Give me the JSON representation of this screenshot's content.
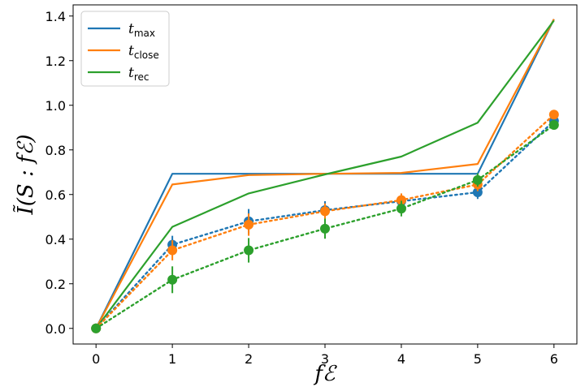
{
  "chart_data": {
    "type": "line",
    "x": [
      0,
      1,
      2,
      3,
      4,
      5,
      6
    ],
    "xlabel": "fℰ",
    "ylabel": "Ĩ(S : fℰ)",
    "xlim": [
      -0.3,
      6.3
    ],
    "ylim": [
      -0.07,
      1.45
    ],
    "xticks": [
      "0",
      "1",
      "2",
      "3",
      "4",
      "5",
      "6"
    ],
    "yticks": [
      "0.0",
      "0.2",
      "0.4",
      "0.6",
      "0.8",
      "1.0",
      "1.2",
      "1.4"
    ],
    "grid": false,
    "legend_position": "top-left",
    "series": [
      {
        "name": "t_max",
        "label_main": "t",
        "label_sub": "max",
        "color": "#1f77b4",
        "style": "solid",
        "values": [
          0.0,
          0.693,
          0.693,
          0.693,
          0.693,
          0.693,
          1.386
        ]
      },
      {
        "name": "t_close",
        "label_main": "t",
        "label_sub": "close",
        "color": "#ff7f0e",
        "style": "solid",
        "values": [
          0.0,
          0.645,
          0.687,
          0.693,
          0.697,
          0.737,
          1.386
        ]
      },
      {
        "name": "t_rec",
        "label_main": "t",
        "label_sub": "rec",
        "color": "#2ca02c",
        "style": "solid",
        "values": [
          0.0,
          0.455,
          0.605,
          0.69,
          0.77,
          0.922,
          1.38
        ]
      },
      {
        "color": "#1f77b4",
        "style": "dotted-markers",
        "values": [
          0.0,
          0.375,
          0.48,
          0.53,
          0.57,
          0.61,
          0.93
        ],
        "errors": [
          0.0,
          0.04,
          0.055,
          0.04,
          0.03,
          0.03,
          0.02
        ]
      },
      {
        "color": "#ff7f0e",
        "style": "dotted-markers",
        "values": [
          0.0,
          0.35,
          0.465,
          0.525,
          0.575,
          0.645,
          0.958
        ],
        "errors": [
          0.0,
          0.045,
          0.05,
          0.035,
          0.03,
          0.03,
          0.02
        ]
      },
      {
        "color": "#2ca02c",
        "style": "dotted-markers",
        "values": [
          0.0,
          0.218,
          0.35,
          0.447,
          0.537,
          0.665,
          0.912
        ],
        "errors": [
          0.0,
          0.06,
          0.055,
          0.045,
          0.035,
          0.03,
          0.02
        ]
      }
    ]
  }
}
